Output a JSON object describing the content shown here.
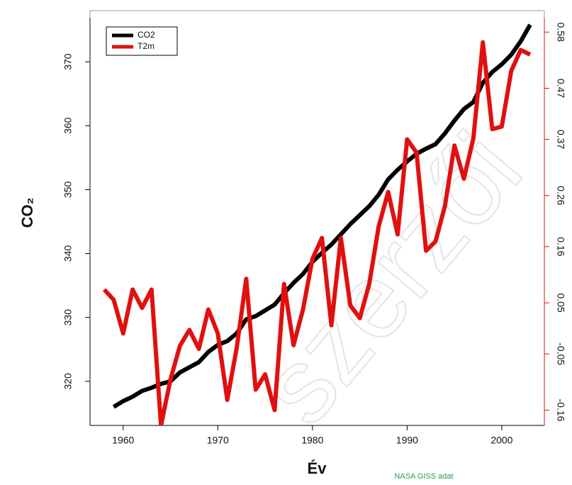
{
  "chart_data": {
    "type": "line",
    "x_label": "Év",
    "y_label": "CO₂",
    "source_note": "NASA GISS adat",
    "watermark": "szerzői",
    "x": [
      1958,
      1959,
      1960,
      1961,
      1962,
      1963,
      1964,
      1965,
      1966,
      1967,
      1968,
      1969,
      1970,
      1971,
      1972,
      1973,
      1974,
      1975,
      1976,
      1977,
      1978,
      1979,
      1980,
      1981,
      1982,
      1983,
      1984,
      1985,
      1986,
      1987,
      1988,
      1989,
      1990,
      1991,
      1992,
      1993,
      1994,
      1995,
      1996,
      1997,
      1998,
      1999,
      2000,
      2001,
      2002,
      2003
    ],
    "series": [
      {
        "name": "CO2",
        "color": "#000000",
        "axis": "y",
        "values": [
          null,
          316.0,
          316.9,
          317.6,
          318.5,
          319.0,
          319.6,
          320.0,
          321.4,
          322.2,
          323.0,
          324.6,
          325.7,
          326.3,
          327.5,
          329.7,
          330.2,
          331.1,
          332.0,
          333.8,
          335.4,
          336.8,
          338.7,
          340.1,
          341.4,
          343.0,
          344.6,
          346.0,
          347.4,
          349.2,
          351.6,
          353.1,
          354.4,
          355.6,
          356.4,
          357.1,
          358.8,
          360.8,
          362.6,
          363.7,
          366.7,
          368.4,
          369.6,
          371.1,
          373.2,
          375.8
        ]
      },
      {
        "name": "T2m",
        "color": "#e01010",
        "axis": "y2",
        "values": [
          0.076,
          0.056,
          -0.01,
          0.076,
          0.04,
          0.076,
          -0.19,
          -0.1,
          -0.034,
          -0.003,
          -0.04,
          0.037,
          -0.01,
          -0.14,
          -0.038,
          0.097,
          -0.12,
          -0.09,
          -0.16,
          0.087,
          -0.033,
          0.037,
          0.136,
          0.177,
          0.006,
          0.177,
          0.045,
          0.02,
          0.087,
          0.2,
          0.267,
          0.184,
          0.37,
          0.344,
          0.152,
          0.17,
          0.24,
          0.358,
          0.293,
          0.372,
          0.56,
          0.39,
          0.395,
          0.504,
          0.545,
          0.536
        ]
      }
    ],
    "xlim": [
      1956.5,
      2004.5
    ],
    "xticks": [
      1960,
      1970,
      1980,
      1990,
      2000
    ],
    "ylim": [
      313.1,
      378
    ],
    "yticks": [
      320,
      330,
      340,
      350,
      360,
      370
    ],
    "y2lim": [
      -0.19,
      0.622
    ],
    "y2ticks": [
      -0.16,
      -0.05,
      0.05,
      0.16,
      0.26,
      0.37,
      0.47,
      0.58
    ],
    "legend": "top-left"
  }
}
